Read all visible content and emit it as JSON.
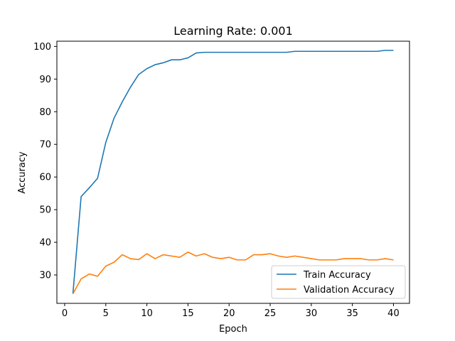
{
  "chart_data": {
    "type": "line",
    "title": "Learning Rate: 0.001",
    "xlabel": "Epoch",
    "ylabel": "Accuracy",
    "xlim": [
      -0.95,
      41.95
    ],
    "ylim": [
      21.3,
      101.6
    ],
    "xticks": [
      0,
      5,
      10,
      15,
      20,
      25,
      30,
      35,
      40
    ],
    "yticks": [
      30,
      40,
      50,
      60,
      70,
      80,
      90,
      100
    ],
    "grid": false,
    "legend_position": "lower-right",
    "x": [
      1,
      2,
      3,
      4,
      5,
      6,
      7,
      8,
      9,
      10,
      11,
      12,
      13,
      14,
      15,
      16,
      17,
      18,
      19,
      20,
      21,
      22,
      23,
      24,
      25,
      26,
      27,
      28,
      29,
      30,
      31,
      32,
      33,
      34,
      35,
      36,
      37,
      38,
      39,
      40
    ],
    "series": [
      {
        "name": "Train Accuracy",
        "color": "#1f77b4",
        "values": [
          24.2,
          54.0,
          56.7,
          59.6,
          70.6,
          78.0,
          83.0,
          87.5,
          91.4,
          93.2,
          94.4,
          95.0,
          95.9,
          95.9,
          96.5,
          98.0,
          98.2,
          98.2,
          98.2,
          98.2,
          98.2,
          98.2,
          98.2,
          98.2,
          98.2,
          98.2,
          98.2,
          98.5,
          98.5,
          98.5,
          98.5,
          98.5,
          98.5,
          98.5,
          98.5,
          98.5,
          98.5,
          98.5,
          98.8,
          98.8
        ]
      },
      {
        "name": "Validation Accuracy",
        "color": "#ff7f0e",
        "values": [
          24.2,
          28.8,
          30.3,
          29.6,
          32.7,
          33.9,
          36.2,
          35.0,
          34.7,
          36.5,
          35.0,
          36.2,
          35.8,
          35.4,
          37.0,
          35.8,
          36.5,
          35.4,
          35.0,
          35.4,
          34.6,
          34.6,
          36.2,
          36.2,
          36.5,
          35.8,
          35.4,
          35.8,
          35.4,
          35.0,
          34.6,
          34.6,
          34.6,
          35.0,
          35.0,
          35.0,
          34.6,
          34.6,
          35.0,
          34.6
        ]
      }
    ]
  }
}
